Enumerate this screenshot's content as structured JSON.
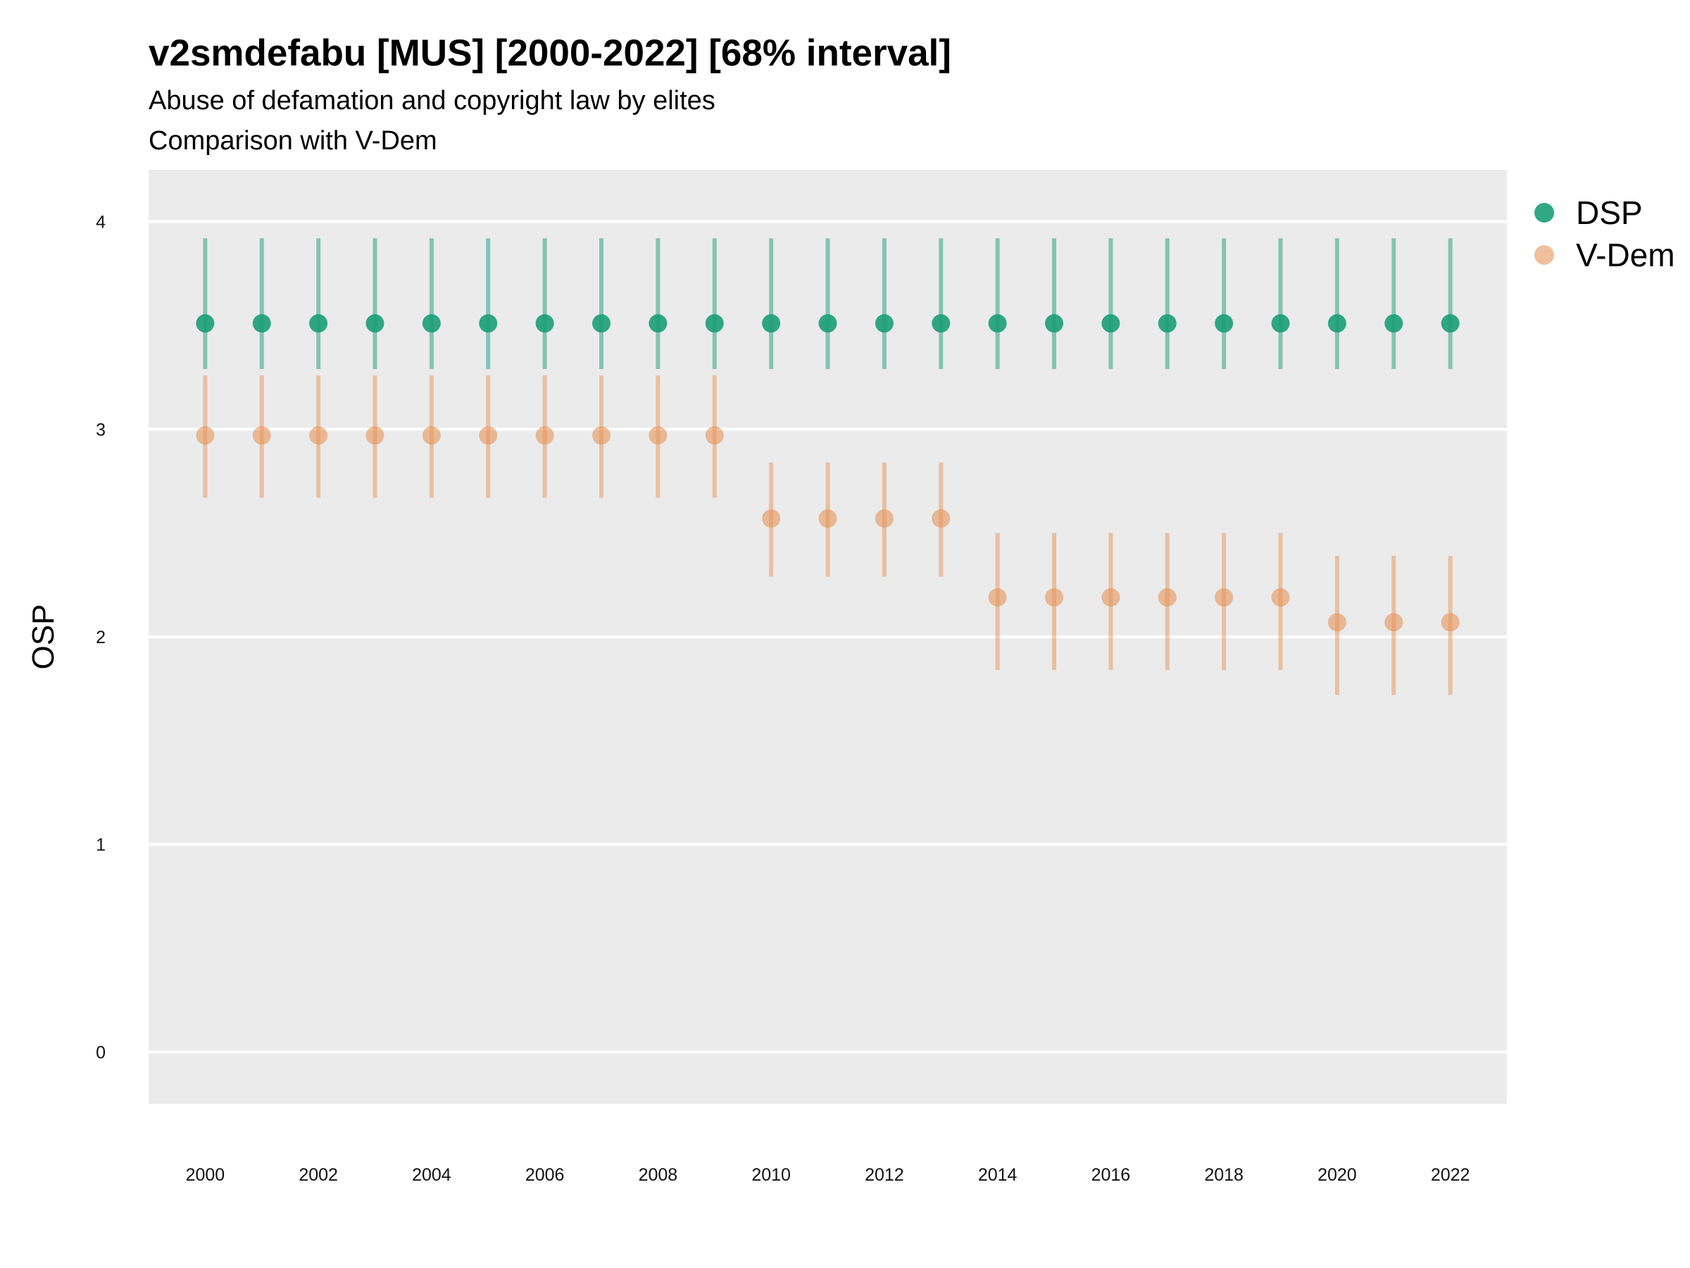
{
  "chart_data": {
    "type": "scatter",
    "title": "v2smdefabu [MUS] [2000-2022] [68% interval]",
    "subtitle_lines": [
      "Abuse of defamation and copyright law by elites",
      "Comparison with V-Dem"
    ],
    "xlabel": "",
    "ylabel": "OSP",
    "xlim": [
      1999.0,
      2023.0
    ],
    "ylim": [
      -0.25,
      4.25
    ],
    "x_ticks": [
      2000,
      2002,
      2004,
      2006,
      2008,
      2010,
      2012,
      2014,
      2016,
      2018,
      2020,
      2022
    ],
    "y_ticks": [
      0,
      1,
      2,
      3,
      4
    ],
    "grid": true,
    "legend_position": "right",
    "x": [
      2000,
      2001,
      2002,
      2003,
      2004,
      2005,
      2006,
      2007,
      2008,
      2009,
      2010,
      2011,
      2012,
      2013,
      2014,
      2015,
      2016,
      2017,
      2018,
      2019,
      2020,
      2021,
      2022
    ],
    "series": [
      {
        "name": "DSP",
        "color": "#1b9e77",
        "values": [
          3.51,
          3.51,
          3.51,
          3.51,
          3.51,
          3.51,
          3.51,
          3.51,
          3.51,
          3.51,
          3.51,
          3.51,
          3.51,
          3.51,
          3.51,
          3.51,
          3.51,
          3.51,
          3.51,
          3.51,
          3.51,
          3.51,
          3.51
        ],
        "lower": [
          3.29,
          3.29,
          3.29,
          3.29,
          3.29,
          3.29,
          3.29,
          3.29,
          3.29,
          3.29,
          3.29,
          3.29,
          3.29,
          3.29,
          3.29,
          3.29,
          3.29,
          3.29,
          3.29,
          3.29,
          3.29,
          3.29,
          3.29
        ],
        "upper": [
          3.92,
          3.92,
          3.92,
          3.92,
          3.92,
          3.92,
          3.92,
          3.92,
          3.92,
          3.92,
          3.92,
          3.92,
          3.92,
          3.92,
          3.92,
          3.92,
          3.92,
          3.92,
          3.92,
          3.92,
          3.92,
          3.92,
          3.92
        ]
      },
      {
        "name": "V-Dem",
        "color": "#e6955a",
        "values": [
          2.97,
          2.97,
          2.97,
          2.97,
          2.97,
          2.97,
          2.97,
          2.97,
          2.97,
          2.97,
          2.57,
          2.57,
          2.57,
          2.57,
          2.19,
          2.19,
          2.19,
          2.19,
          2.19,
          2.19,
          2.07,
          2.07,
          2.07
        ],
        "lower": [
          2.67,
          2.67,
          2.67,
          2.67,
          2.67,
          2.67,
          2.67,
          2.67,
          2.67,
          2.67,
          2.29,
          2.29,
          2.29,
          2.29,
          1.84,
          1.84,
          1.84,
          1.84,
          1.84,
          1.84,
          1.72,
          1.72,
          1.72
        ],
        "upper": [
          3.26,
          3.26,
          3.26,
          3.26,
          3.26,
          3.26,
          3.26,
          3.26,
          3.26,
          3.26,
          2.84,
          2.84,
          2.84,
          2.84,
          2.5,
          2.5,
          2.5,
          2.5,
          2.5,
          2.5,
          2.39,
          2.39,
          2.39
        ]
      }
    ]
  }
}
